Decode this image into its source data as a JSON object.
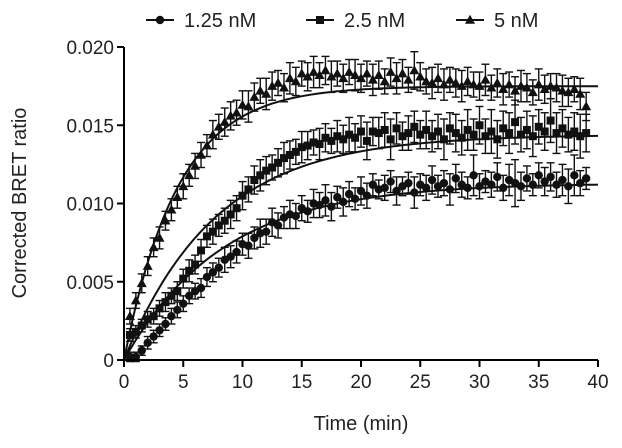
{
  "chart_data": {
    "type": "scatter",
    "title": "",
    "xlabel": "Time (min)",
    "ylabel": "Corrected BRET ratio",
    "xlim": [
      0,
      40
    ],
    "ylim": [
      0,
      0.02
    ],
    "x_ticks": [
      "0",
      "5",
      "10",
      "15",
      "20",
      "25",
      "30",
      "35",
      "40"
    ],
    "y_ticks": [
      "0",
      "0.005",
      "0.010",
      "0.015",
      "0.020"
    ],
    "grid": false,
    "legend_position": "top",
    "fit": "one-phase association curve per series",
    "series": [
      {
        "name": "1.25 nM",
        "marker": "circle",
        "plateau": 0.0113,
        "k": 0.12,
        "x": [
          0.5,
          1,
          1.5,
          2,
          2.5,
          3,
          3.5,
          4,
          4.5,
          5,
          5.5,
          6,
          6.5,
          7,
          7.5,
          8,
          8.5,
          9,
          9.5,
          10,
          10.5,
          11,
          11.5,
          12,
          12.5,
          13,
          13.5,
          14,
          14.5,
          15,
          15.5,
          16,
          16.5,
          17,
          17.5,
          18,
          18.5,
          19,
          19.5,
          20,
          20.5,
          21,
          21.5,
          22,
          22.5,
          23,
          23.5,
          24,
          24.5,
          25,
          25.5,
          26,
          26.5,
          27,
          27.5,
          28,
          28.5,
          29,
          29.5,
          30,
          30.5,
          31,
          31.5,
          32,
          32.5,
          33,
          33.5,
          34,
          34.5,
          35,
          35.5,
          36,
          36.5,
          37,
          37.5,
          38,
          38.5,
          39
        ],
        "y": [
          0.0002,
          0.0002,
          0.0006,
          0.0011,
          0.0015,
          0.0019,
          0.0023,
          0.0028,
          0.0032,
          0.0036,
          0.0041,
          0.0044,
          0.0046,
          0.0053,
          0.0056,
          0.0059,
          0.0064,
          0.0066,
          0.0069,
          0.0074,
          0.0073,
          0.0078,
          0.0081,
          0.0082,
          0.0088,
          0.0086,
          0.0091,
          0.0093,
          0.0092,
          0.0097,
          0.0095,
          0.01,
          0.0099,
          0.0102,
          0.0098,
          0.0104,
          0.0101,
          0.0106,
          0.0103,
          0.0108,
          0.0105,
          0.0112,
          0.0109,
          0.011,
          0.0114,
          0.0108,
          0.0111,
          0.0113,
          0.0107,
          0.0112,
          0.011,
          0.0115,
          0.0111,
          0.0113,
          0.0109,
          0.0116,
          0.0112,
          0.011,
          0.0118,
          0.0111,
          0.0114,
          0.0112,
          0.0117,
          0.011,
          0.0115,
          0.0113,
          0.0111,
          0.0116,
          0.0112,
          0.0118,
          0.0114,
          0.0117,
          0.0112,
          0.0115,
          0.0111,
          0.0118,
          0.0113,
          0.0116
        ],
        "err": [
          0.0003,
          0.0003,
          0.0003,
          0.0004,
          0.0004,
          0.0004,
          0.0004,
          0.0005,
          0.0005,
          0.0005,
          0.0005,
          0.0005,
          0.0006,
          0.0006,
          0.0006,
          0.0006,
          0.0008,
          0.0007,
          0.0007,
          0.0007,
          0.0008,
          0.0007,
          0.0009,
          0.0008,
          0.0009,
          0.0008,
          0.0007,
          0.0009,
          0.0008,
          0.0008,
          0.0007,
          0.0009,
          0.0008,
          0.001,
          0.0009,
          0.0007,
          0.0009,
          0.0008,
          0.0007,
          0.0009,
          0.0008,
          0.0007,
          0.0006,
          0.0008,
          0.0007,
          0.0009,
          0.0006,
          0.0007,
          0.001,
          0.0007,
          0.0008,
          0.0009,
          0.0007,
          0.0008,
          0.001,
          0.0009,
          0.0008,
          0.0007,
          0.0013,
          0.0008,
          0.0007,
          0.0008,
          0.0009,
          0.0008,
          0.001,
          0.0015,
          0.0009,
          0.0008,
          0.0007,
          0.0008,
          0.0009,
          0.0009,
          0.0008,
          0.001,
          0.0011,
          0.0013,
          0.0008,
          0.0007
        ]
      },
      {
        "name": "2.5 nM",
        "marker": "square",
        "plateau": 0.0144,
        "k": 0.13,
        "x": [
          0.5,
          1,
          1.5,
          2,
          2.5,
          3,
          3.5,
          4,
          4.5,
          5,
          5.5,
          6,
          6.5,
          7,
          7.5,
          8,
          8.5,
          9,
          9.5,
          10,
          10.5,
          11,
          11.5,
          12,
          12.5,
          13,
          13.5,
          14,
          14.5,
          15,
          15.5,
          16,
          16.5,
          17,
          17.5,
          18,
          18.5,
          19,
          19.5,
          20,
          20.5,
          21,
          21.5,
          22,
          22.5,
          23,
          23.5,
          24,
          24.5,
          25,
          25.5,
          26,
          26.5,
          27,
          27.5,
          28,
          28.5,
          29,
          29.5,
          30,
          30.5,
          31,
          31.5,
          32,
          32.5,
          33,
          33.5,
          34,
          34.5,
          35,
          35.5,
          36,
          36.5,
          37,
          37.5,
          38,
          38.5,
          39
        ],
        "y": [
          0.0016,
          0.0018,
          0.0022,
          0.0026,
          0.0028,
          0.0033,
          0.0037,
          0.0041,
          0.0044,
          0.0052,
          0.0057,
          0.0061,
          0.007,
          0.0079,
          0.0082,
          0.0086,
          0.0089,
          0.0093,
          0.0097,
          0.0105,
          0.0109,
          0.0115,
          0.0118,
          0.0121,
          0.0123,
          0.0126,
          0.0129,
          0.0131,
          0.0133,
          0.0136,
          0.0137,
          0.0139,
          0.0138,
          0.0142,
          0.014,
          0.0143,
          0.0141,
          0.0144,
          0.0142,
          0.0146,
          0.014,
          0.0146,
          0.0145,
          0.0147,
          0.0141,
          0.0148,
          0.0143,
          0.0145,
          0.0149,
          0.0144,
          0.0147,
          0.0143,
          0.0146,
          0.0141,
          0.0148,
          0.0145,
          0.0142,
          0.0147,
          0.0144,
          0.015,
          0.0143,
          0.0146,
          0.0141,
          0.0148,
          0.0145,
          0.0152,
          0.0144,
          0.0147,
          0.0143,
          0.0149,
          0.0146,
          0.0153,
          0.0145,
          0.0148,
          0.0144,
          0.0146,
          0.0143,
          0.0145
        ],
        "err": [
          0.0004,
          0.0004,
          0.0004,
          0.0005,
          0.0005,
          0.0005,
          0.0006,
          0.0005,
          0.0006,
          0.0006,
          0.0007,
          0.0006,
          0.0007,
          0.0007,
          0.0008,
          0.0007,
          0.0008,
          0.0009,
          0.0008,
          0.0009,
          0.0008,
          0.0009,
          0.001,
          0.0009,
          0.0008,
          0.0009,
          0.001,
          0.0009,
          0.0008,
          0.001,
          0.0009,
          0.0008,
          0.001,
          0.0009,
          0.0008,
          0.001,
          0.0009,
          0.0011,
          0.0009,
          0.001,
          0.0012,
          0.0009,
          0.001,
          0.0011,
          0.0013,
          0.001,
          0.0009,
          0.0011,
          0.001,
          0.0009,
          0.0012,
          0.001,
          0.0011,
          0.0013,
          0.001,
          0.0012,
          0.0011,
          0.0013,
          0.001,
          0.0012,
          0.0011,
          0.0014,
          0.0012,
          0.0011,
          0.0013,
          0.0014,
          0.0011,
          0.0012,
          0.0013,
          0.0011,
          0.0012,
          0.0014,
          0.0013,
          0.0012,
          0.0011,
          0.0012,
          0.0014,
          0.0012
        ]
      },
      {
        "name": "5 nM",
        "marker": "triangle",
        "plateau": 0.0175,
        "k": 0.22,
        "x": [
          0.5,
          1,
          1.5,
          2,
          2.5,
          3,
          3.5,
          4,
          4.5,
          5,
          5.5,
          6,
          6.5,
          7,
          7.5,
          8,
          8.5,
          9,
          9.5,
          10,
          10.5,
          11,
          11.5,
          12,
          12.5,
          13,
          13.5,
          14,
          14.5,
          15,
          15.5,
          16,
          16.5,
          17,
          17.5,
          18,
          18.5,
          19,
          19.5,
          20,
          20.5,
          21,
          21.5,
          22,
          22.5,
          23,
          23.5,
          24,
          24.5,
          25,
          25.5,
          26,
          26.5,
          27,
          27.5,
          28,
          28.5,
          29,
          29.5,
          30,
          30.5,
          31,
          31.5,
          32,
          32.5,
          33,
          33.5,
          34,
          34.5,
          35,
          35.5,
          36,
          36.5,
          37,
          37.5,
          38,
          38.5,
          39
        ],
        "y": [
          0.0028,
          0.0038,
          0.0049,
          0.006,
          0.0072,
          0.0078,
          0.0089,
          0.0096,
          0.0104,
          0.0111,
          0.0118,
          0.0124,
          0.0131,
          0.0137,
          0.0144,
          0.0149,
          0.0152,
          0.0156,
          0.0158,
          0.0163,
          0.0162,
          0.0168,
          0.0172,
          0.017,
          0.0175,
          0.0177,
          0.0174,
          0.018,
          0.0178,
          0.0183,
          0.0181,
          0.0184,
          0.0182,
          0.0185,
          0.0181,
          0.0183,
          0.018,
          0.0184,
          0.0182,
          0.018,
          0.0183,
          0.0179,
          0.0182,
          0.0178,
          0.0184,
          0.018,
          0.0183,
          0.0179,
          0.0185,
          0.0181,
          0.0178,
          0.0177,
          0.018,
          0.0176,
          0.0179,
          0.0177,
          0.0175,
          0.0178,
          0.0176,
          0.0175,
          0.0179,
          0.0174,
          0.0177,
          0.0173,
          0.0176,
          0.0172,
          0.0175,
          0.0174,
          0.0171,
          0.0176,
          0.0173,
          0.0175,
          0.0174,
          0.0172,
          0.0171,
          0.0173,
          0.017,
          0.0162
        ],
        "err": [
          0.0005,
          0.0005,
          0.0006,
          0.0006,
          0.0006,
          0.0007,
          0.0006,
          0.0007,
          0.0007,
          0.0008,
          0.0007,
          0.0008,
          0.0008,
          0.0007,
          0.0009,
          0.0008,
          0.0009,
          0.0009,
          0.0008,
          0.0009,
          0.001,
          0.0009,
          0.0008,
          0.001,
          0.0009,
          0.0008,
          0.0009,
          0.001,
          0.0009,
          0.0008,
          0.0009,
          0.001,
          0.0008,
          0.0009,
          0.001,
          0.0008,
          0.0009,
          0.0008,
          0.001,
          0.0009,
          0.0008,
          0.001,
          0.0009,
          0.0008,
          0.0009,
          0.001,
          0.0009,
          0.0008,
          0.0012,
          0.0009,
          0.0008,
          0.001,
          0.0009,
          0.001,
          0.0008,
          0.0009,
          0.001,
          0.0009,
          0.0008,
          0.0009,
          0.001,
          0.0008,
          0.0009,
          0.001,
          0.0008,
          0.0009,
          0.001,
          0.0009,
          0.0008,
          0.001,
          0.0009,
          0.0008,
          0.0009,
          0.001,
          0.0009,
          0.0008,
          0.001,
          0.0009
        ]
      }
    ]
  }
}
